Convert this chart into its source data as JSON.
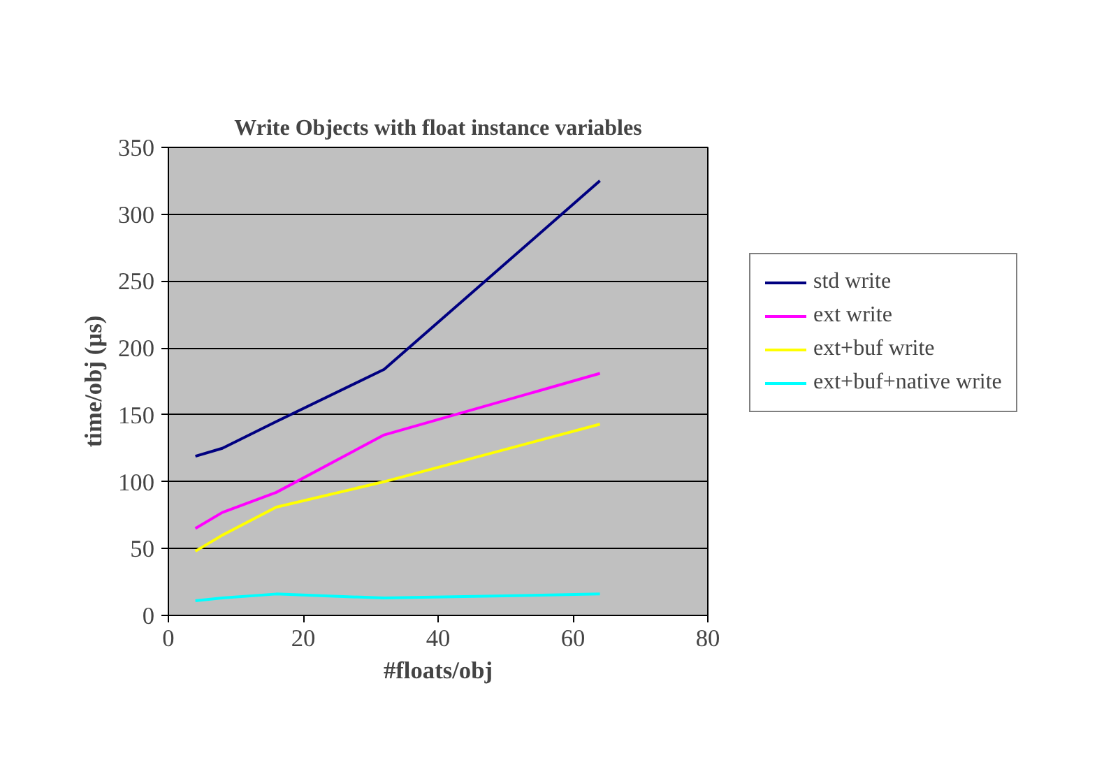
{
  "chart_data": {
    "type": "line",
    "title": "Write Objects with float instance variables",
    "xlabel": "#floats/obj",
    "ylabel": "time/obj (µs)",
    "x": [
      4,
      8,
      16,
      32,
      64
    ],
    "series": [
      {
        "name": "std write",
        "color": "#000080",
        "values": [
          119,
          125,
          145,
          184,
          325
        ]
      },
      {
        "name": "ext write",
        "color": "#ff00ff",
        "values": [
          65,
          77,
          92,
          135,
          181
        ]
      },
      {
        "name": "ext+buf write",
        "color": "#ffff00",
        "values": [
          48,
          60,
          81,
          100,
          143
        ]
      },
      {
        "name": "ext+buf+native write",
        "color": "#00ffff",
        "values": [
          11,
          13,
          16,
          13,
          16
        ]
      }
    ],
    "xlim": [
      0,
      80
    ],
    "xticks": [
      0,
      20,
      40,
      60,
      80
    ],
    "ylim": [
      0,
      350
    ],
    "yticks": [
      0,
      50,
      100,
      150,
      200,
      250,
      300,
      350
    ],
    "grid": "y",
    "legend": "right",
    "marker": "none",
    "line_style": "solid"
  }
}
